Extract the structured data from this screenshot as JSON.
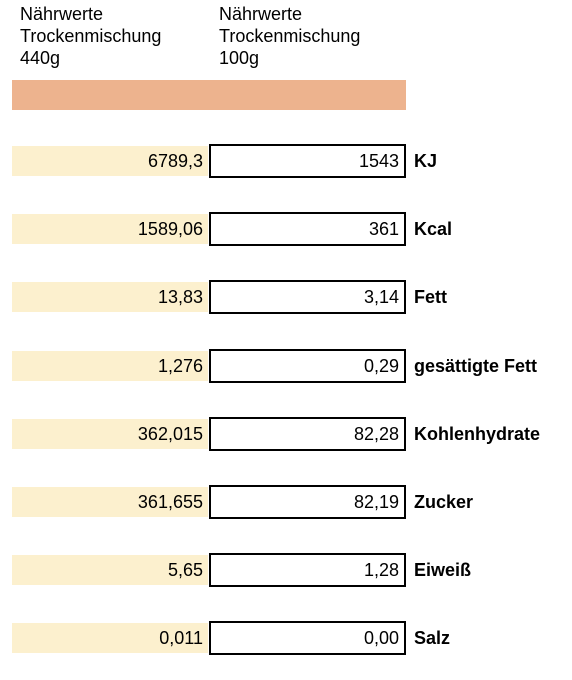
{
  "header": {
    "col1": [
      "Nährwerte",
      "Trockenmischung",
      "440g"
    ],
    "col2": [
      "Nährwerte",
      "Trockenmischung",
      "100g"
    ]
  },
  "colors": {
    "accent_bar": "#EDB38E",
    "cell_fill": "#FCF0CE",
    "border": "#000000"
  },
  "rows": [
    {
      "total": "6789,3",
      "per100": "1543",
      "label": "KJ"
    },
    {
      "total": "1589,06",
      "per100": "361",
      "label": "Kcal"
    },
    {
      "total": "13,83",
      "per100": "3,14",
      "label": "Fett"
    },
    {
      "total": "1,276",
      "per100": "0,29",
      "label": "gesättigte Fett"
    },
    {
      "total": "362,015",
      "per100": "82,28",
      "label": "Kohlenhydrate"
    },
    {
      "total": "361,655",
      "per100": "82,19",
      "label": "Zucker"
    },
    {
      "total": "5,65",
      "per100": "1,28",
      "label": "Eiweiß"
    },
    {
      "total": "0,011",
      "per100": "0,00",
      "label": "Salz"
    }
  ]
}
